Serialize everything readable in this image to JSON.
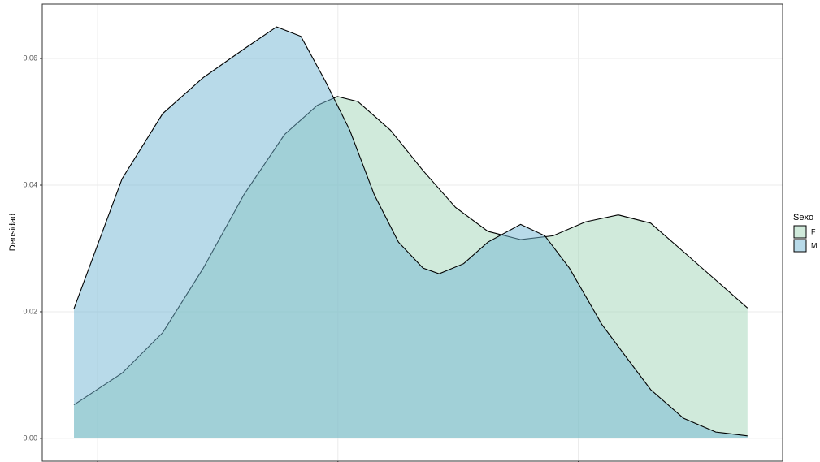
{
  "chart_data": {
    "type": "density",
    "y_label": "Densidad",
    "legend_title": "Sexo",
    "xlim": [
      0.77,
      3.85
    ],
    "xticks": [
      1,
      2,
      3
    ],
    "ylim": [
      -0.0036,
      0.0686
    ],
    "yticks": [
      {
        "value": 0,
        "label": "0.00"
      },
      {
        "value": 0.02,
        "label": "0.02"
      },
      {
        "value": 0.04,
        "label": "0.04"
      },
      {
        "value": 0.06,
        "label": "0.06"
      }
    ],
    "grid": true,
    "legend": "right",
    "series": [
      {
        "name": "F",
        "color": "#a1d6b8",
        "x": [
          0.902,
          1.102,
          1.271,
          1.44,
          1.609,
          1.778,
          1.914,
          1.998,
          2.083,
          2.218,
          2.354,
          2.489,
          2.624,
          2.76,
          2.895,
          3.03,
          3.166,
          3.301,
          3.437,
          3.572,
          3.704
        ],
        "values": [
          0.0053,
          0.0103,
          0.0167,
          0.0269,
          0.0385,
          0.048,
          0.0526,
          0.054,
          0.0532,
          0.0487,
          0.0423,
          0.0365,
          0.0327,
          0.0314,
          0.032,
          0.0342,
          0.0353,
          0.034,
          0.0295,
          0.025,
          0.0206
        ]
      },
      {
        "name": "M",
        "color": "#72b5d4",
        "x": [
          0.902,
          1.102,
          1.271,
          1.44,
          1.609,
          1.745,
          1.846,
          1.948,
          2.049,
          2.151,
          2.252,
          2.354,
          2.421,
          2.523,
          2.624,
          2.76,
          2.861,
          2.963,
          3.098,
          3.2,
          3.301,
          3.437,
          3.572,
          3.704
        ],
        "values": [
          0.0205,
          0.041,
          0.0513,
          0.057,
          0.0615,
          0.065,
          0.0635,
          0.0564,
          0.0487,
          0.0385,
          0.031,
          0.0269,
          0.026,
          0.0276,
          0.031,
          0.0338,
          0.032,
          0.0269,
          0.018,
          0.0128,
          0.0077,
          0.0032,
          0.001,
          0.0004
        ]
      }
    ]
  }
}
